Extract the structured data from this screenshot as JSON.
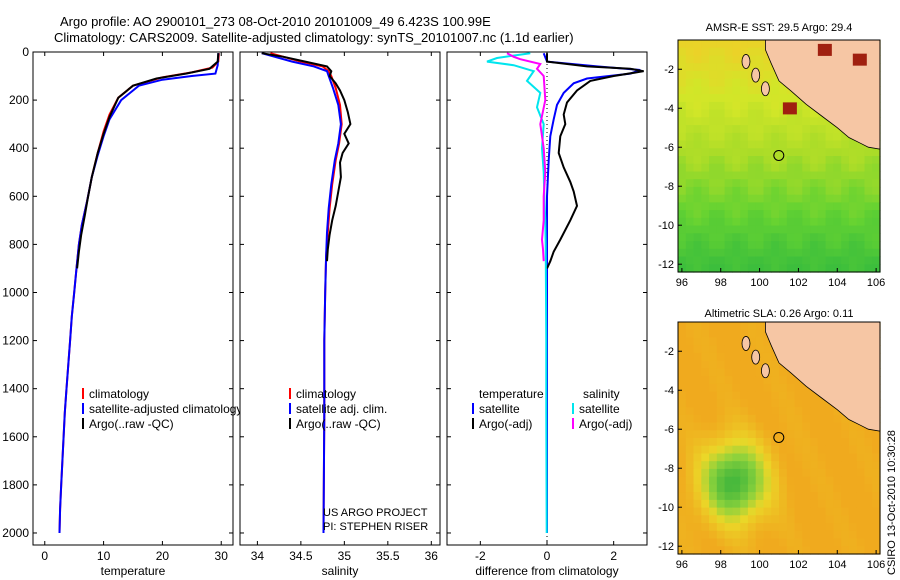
{
  "header": {
    "line1": "Argo profile: AO 2900101_273 08-Oct-2010 20101009_49 6.423S 100.99E",
    "line2": "Climatology: CARS2009. Satellite-adjusted climatology: synTS_20101007.nc (1.1d earlier)"
  },
  "side_label": "CSIRO 13-Oct-2010 10:30:28",
  "colors": {
    "climatology": "#ff0000",
    "satellite": "#0000ff",
    "argo": "#000000",
    "satellite_diff": "#00e5ee",
    "argo_salinity_diff": "#ff00ff"
  },
  "chart_data": [
    {
      "type": "line",
      "id": "temperature",
      "xlabel": "temperature",
      "xlim": [
        -2,
        32
      ],
      "ylim": [
        2050,
        0
      ],
      "xticks": [
        0,
        10,
        20,
        30
      ],
      "yticks": [
        0,
        200,
        400,
        600,
        800,
        1000,
        1200,
        1400,
        1600,
        1800,
        2000
      ],
      "legend": [
        "climatology",
        "satellite-adjusted climatology",
        "Argo(..raw -QC)"
      ],
      "series": [
        {
          "name": "climatology",
          "color": "#ff0000",
          "points": [
            [
              29.6,
              5
            ],
            [
              29.5,
              40
            ],
            [
              28.5,
              65
            ],
            [
              25,
              85
            ],
            [
              20,
              105
            ],
            [
              15,
              140
            ],
            [
              12.5,
              190
            ],
            [
              11,
              260
            ],
            [
              10,
              330
            ],
            [
              9,
              420
            ],
            [
              8,
              520
            ],
            [
              7.2,
              620
            ],
            [
              6.3,
              720
            ],
            [
              5.8,
              800
            ],
            [
              5.4,
              900
            ],
            [
              5,
              1000
            ],
            [
              4.6,
              1100
            ],
            [
              4.3,
              1200
            ],
            [
              4,
              1300
            ],
            [
              3.7,
              1400
            ],
            [
              3.4,
              1500
            ],
            [
              3.2,
              1600
            ],
            [
              3,
              1700
            ],
            [
              2.8,
              1800
            ],
            [
              2.6,
              1900
            ],
            [
              2.5,
              2000
            ]
          ]
        },
        {
          "name": "satellite-adjusted climatology",
          "color": "#0000ff",
          "points": [
            [
              29.5,
              5
            ],
            [
              29.4,
              55
            ],
            [
              29,
              90
            ],
            [
              25,
              100
            ],
            [
              20,
              115
            ],
            [
              16,
              140
            ],
            [
              13,
              200
            ],
            [
              11,
              280
            ],
            [
              10,
              350
            ],
            [
              9,
              430
            ],
            [
              8,
              520
            ],
            [
              7.2,
              620
            ],
            [
              6.3,
              720
            ],
            [
              5.8,
              800
            ],
            [
              5.4,
              900
            ],
            [
              5,
              1000
            ],
            [
              4.6,
              1100
            ],
            [
              4.3,
              1200
            ],
            [
              4,
              1300
            ],
            [
              3.7,
              1400
            ],
            [
              3.4,
              1500
            ],
            [
              3.2,
              1600
            ],
            [
              3,
              1700
            ],
            [
              2.8,
              1800
            ],
            [
              2.6,
              1900
            ],
            [
              2.5,
              2000
            ]
          ]
        },
        {
          "name": "Argo(..raw -QC)",
          "color": "#000000",
          "points": [
            [
              29.5,
              5
            ],
            [
              29.4,
              40
            ],
            [
              28,
              70
            ],
            [
              24,
              90
            ],
            [
              19,
              110
            ],
            [
              15,
              140
            ],
            [
              12.5,
              190
            ],
            [
              11,
              270
            ],
            [
              10,
              340
            ],
            [
              9,
              420
            ],
            [
              8,
              520
            ],
            [
              7.3,
              610
            ],
            [
              6.8,
              680
            ],
            [
              6.2,
              760
            ],
            [
              5.8,
              830
            ],
            [
              5.5,
              900
            ]
          ]
        }
      ]
    },
    {
      "type": "line",
      "id": "salinity",
      "xlabel": "salinity",
      "xlim": [
        33.8,
        36.1
      ],
      "ylim": [
        2050,
        0
      ],
      "xticks": [
        34,
        34.5,
        35,
        35.5,
        36
      ],
      "legend": [
        "climatology",
        "satellite adj. clim.",
        "Argo(..raw -QC)"
      ],
      "annotation": [
        "US ARGO PROJECT",
        "PI: STEPHEN RISER"
      ],
      "series": [
        {
          "name": "climatology",
          "color": "#ff0000",
          "points": [
            [
              34.15,
              5
            ],
            [
              34.3,
              20
            ],
            [
              34.5,
              40
            ],
            [
              34.75,
              60
            ],
            [
              34.82,
              80
            ],
            [
              34.85,
              100
            ],
            [
              34.9,
              150
            ],
            [
              34.95,
              220
            ],
            [
              34.97,
              300
            ],
            [
              34.94,
              380
            ],
            [
              34.9,
              450
            ],
            [
              34.86,
              550
            ],
            [
              34.83,
              650
            ],
            [
              34.81,
              750
            ],
            [
              34.79,
              850
            ],
            [
              34.78,
              1000
            ],
            [
              34.77,
              1200
            ],
            [
              34.77,
              1500
            ],
            [
              34.76,
              2000
            ]
          ]
        },
        {
          "name": "satellite adj. clim.",
          "color": "#0000ff",
          "points": [
            [
              34.05,
              5
            ],
            [
              34.2,
              20
            ],
            [
              34.4,
              40
            ],
            [
              34.65,
              60
            ],
            [
              34.8,
              80
            ],
            [
              34.82,
              100
            ],
            [
              34.87,
              150
            ],
            [
              34.93,
              220
            ],
            [
              34.96,
              300
            ],
            [
              34.93,
              380
            ],
            [
              34.89,
              450
            ],
            [
              34.85,
              550
            ],
            [
              34.82,
              650
            ],
            [
              34.8,
              750
            ],
            [
              34.79,
              850
            ],
            [
              34.78,
              1000
            ],
            [
              34.77,
              1200
            ],
            [
              34.77,
              1500
            ],
            [
              34.76,
              2000
            ]
          ]
        },
        {
          "name": "Argo(..raw -QC)",
          "color": "#000000",
          "points": [
            [
              34.05,
              5
            ],
            [
              34.3,
              20
            ],
            [
              34.55,
              40
            ],
            [
              34.8,
              60
            ],
            [
              34.85,
              80
            ],
            [
              34.83,
              100
            ],
            [
              34.9,
              130
            ],
            [
              34.95,
              160
            ],
            [
              35.0,
              200
            ],
            [
              35.04,
              250
            ],
            [
              35.07,
              300
            ],
            [
              35.0,
              340
            ],
            [
              35.05,
              380
            ],
            [
              34.98,
              420
            ],
            [
              34.95,
              460
            ],
            [
              34.96,
              520
            ],
            [
              34.93,
              580
            ],
            [
              34.9,
              640
            ],
            [
              34.86,
              700
            ],
            [
              34.83,
              760
            ],
            [
              34.81,
              820
            ],
            [
              34.8,
              870
            ]
          ]
        }
      ]
    },
    {
      "type": "line",
      "id": "difference",
      "xlabel": "difference from climatology",
      "xlim": [
        -3,
        3
      ],
      "ylim": [
        2050,
        0
      ],
      "xticks": [
        -2,
        0,
        2
      ],
      "legend_left_title": "temperature",
      "legend_right_title": "salinity",
      "legend": [
        "satellite",
        "Argo(-adj)",
        "satellite",
        "Argo(-adj)"
      ],
      "series": [
        {
          "name": "satellite",
          "color": "#0000ff",
          "points": [
            [
              -0.1,
              5
            ],
            [
              0,
              40
            ],
            [
              1.5,
              60
            ],
            [
              2.8,
              75
            ],
            [
              2.5,
              90
            ],
            [
              1.2,
              110
            ],
            [
              0.8,
              130
            ],
            [
              0.5,
              170
            ],
            [
              0.3,
              220
            ],
            [
              0.2,
              280
            ],
            [
              0.1,
              350
            ],
            [
              0.05,
              450
            ],
            [
              0,
              600
            ],
            [
              0,
              800
            ],
            [
              0,
              1000
            ],
            [
              0,
              1500
            ],
            [
              0,
              2000
            ]
          ]
        },
        {
          "name": "Argo(-adj)",
          "color": "#000000",
          "points": [
            [
              0,
              5
            ],
            [
              0,
              40
            ],
            [
              1.2,
              60
            ],
            [
              2.5,
              70
            ],
            [
              2.9,
              80
            ],
            [
              2,
              100
            ],
            [
              1.3,
              120
            ],
            [
              0.9,
              160
            ],
            [
              0.6,
              210
            ],
            [
              0.5,
              260
            ],
            [
              0.55,
              300
            ],
            [
              0.4,
              350
            ],
            [
              0.35,
              420
            ],
            [
              0.5,
              480
            ],
            [
              0.7,
              540
            ],
            [
              0.8,
              580
            ],
            [
              0.9,
              640
            ],
            [
              0.7,
              700
            ],
            [
              0.4,
              780
            ],
            [
              0.2,
              830
            ],
            [
              0.1,
              870
            ],
            [
              0,
              900
            ]
          ]
        },
        {
          "name": "satellite",
          "color": "#00e5ee",
          "points": [
            [
              -0.5,
              5
            ],
            [
              -1.5,
              25
            ],
            [
              -1.8,
              40
            ],
            [
              -1,
              55
            ],
            [
              -0.4,
              80
            ],
            [
              -0.6,
              120
            ],
            [
              -0.2,
              170
            ],
            [
              -0.3,
              230
            ],
            [
              -0.1,
              300
            ],
            [
              -0.15,
              400
            ],
            [
              -0.1,
              500
            ],
            [
              -0.08,
              600
            ],
            [
              -0.05,
              700
            ],
            [
              -0.04,
              800
            ],
            [
              -0.03,
              1000
            ],
            [
              -0.02,
              1200
            ],
            [
              -0.02,
              1500
            ],
            [
              -0.01,
              2000
            ]
          ]
        },
        {
          "name": "Argo(-adj)",
          "color": "#ff00ff",
          "points": [
            [
              -1.2,
              5
            ],
            [
              -1,
              20
            ],
            [
              -0.8,
              30
            ],
            [
              -0.2,
              50
            ],
            [
              -0.3,
              70
            ],
            [
              -0.1,
              100
            ],
            [
              -0.05,
              200
            ],
            [
              -0.2,
              300
            ],
            [
              -0.1,
              400
            ],
            [
              -0.05,
              500
            ],
            [
              -0.1,
              600
            ],
            [
              -0.1,
              700
            ],
            [
              -0.15,
              780
            ],
            [
              -0.12,
              820
            ],
            [
              -0.1,
              870
            ]
          ]
        }
      ]
    },
    {
      "type": "heatmap",
      "id": "sst-map",
      "title": "AMSR-E SST: 29.5 Argo: 29.4",
      "xlim": [
        95.8,
        106.2
      ],
      "ylim": [
        -12.4,
        -0.5
      ],
      "xticks": [
        96,
        98,
        100,
        102,
        104,
        106
      ],
      "yticks": [
        -2,
        -4,
        -6,
        -8,
        -10,
        -12
      ],
      "float_position": [
        100.99,
        -6.423
      ]
    },
    {
      "type": "heatmap",
      "id": "sla-map",
      "title": "Altimetric SLA: 0.26 Argo: 0.11",
      "xlim": [
        95.8,
        106.2
      ],
      "ylim": [
        -12.4,
        -0.5
      ],
      "xticks": [
        96,
        98,
        100,
        102,
        104,
        106
      ],
      "yticks": [
        -2,
        -4,
        -6,
        -8,
        -10,
        -12
      ],
      "float_position": [
        100.99,
        -6.423
      ]
    }
  ]
}
